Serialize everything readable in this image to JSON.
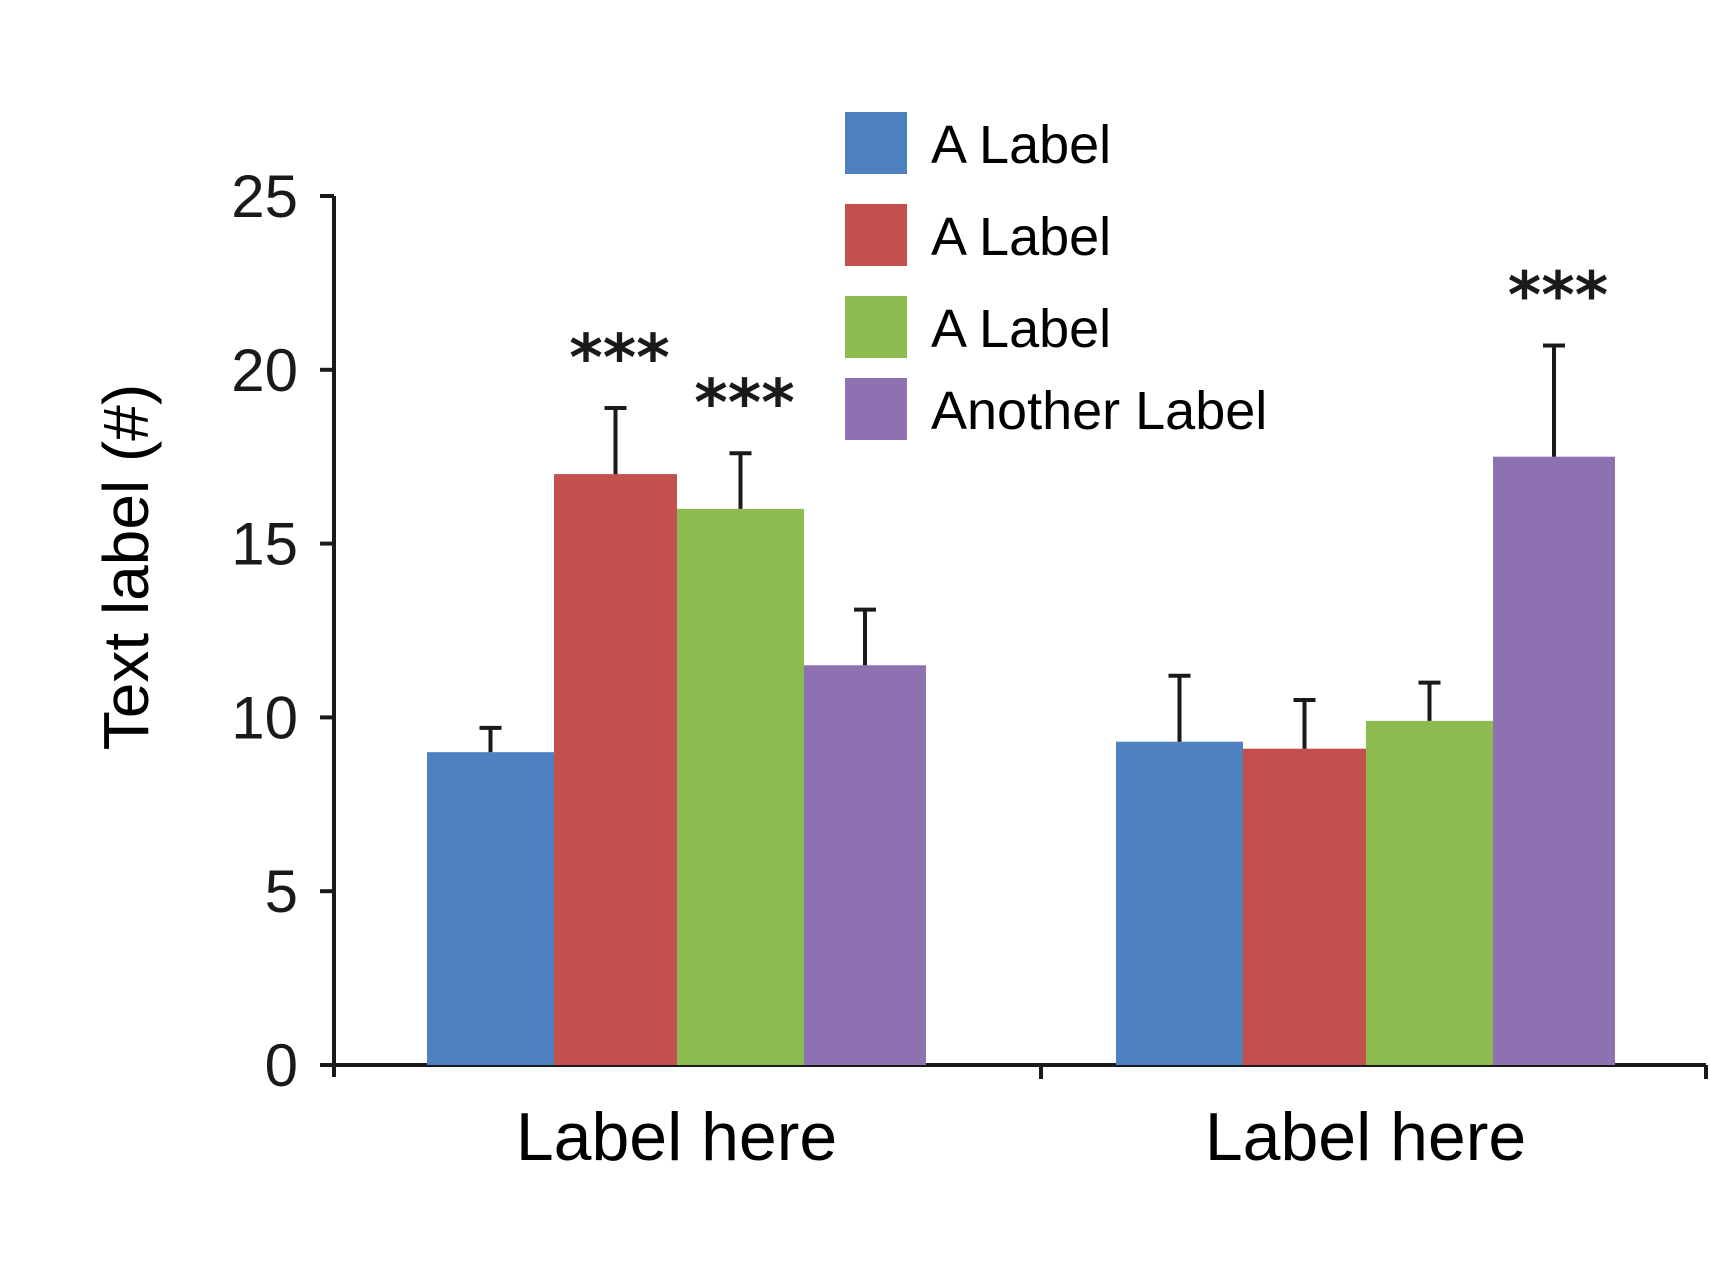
{
  "chart_data": {
    "type": "bar",
    "ylabel": "Text label (#)",
    "xlabel": "",
    "ylim": [
      0,
      25
    ],
    "yticks": [
      0,
      5,
      10,
      15,
      20,
      25
    ],
    "grid": false,
    "legend_position": "top-center",
    "categories": [
      "Label here",
      "Label here"
    ],
    "series": [
      {
        "name": "A Label",
        "color": "#4e81bf",
        "values": [
          9.0,
          9.3
        ],
        "errors": [
          0.7,
          1.9
        ]
      },
      {
        "name": "A Label",
        "color": "#c4504d",
        "values": [
          17.0,
          9.1
        ],
        "errors": [
          1.9,
          1.4
        ]
      },
      {
        "name": "A Label",
        "color": "#8ebb50",
        "values": [
          16.0,
          9.9
        ],
        "errors": [
          1.6,
          1.1
        ]
      },
      {
        "name": "Another Label",
        "color": "#8d71b0",
        "values": [
          11.5,
          17.5
        ],
        "errors": [
          1.6,
          3.2
        ]
      }
    ],
    "annotations": [
      {
        "text": "***",
        "category": 0,
        "series": 1
      },
      {
        "text": "***",
        "category": 0,
        "series": 2
      },
      {
        "text": "***",
        "category": 1,
        "series": 3
      }
    ]
  }
}
